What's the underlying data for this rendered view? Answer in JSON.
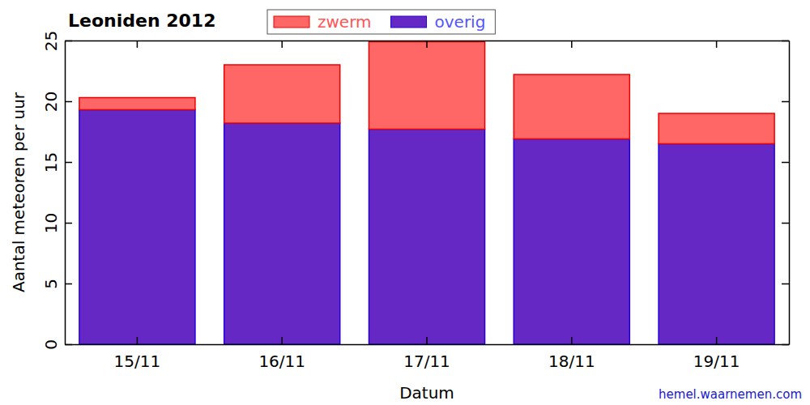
{
  "chart_data": {
    "type": "bar",
    "title": "Leoniden 2012",
    "x_label": "Datum",
    "y_label": "Aantal meteoren per uur",
    "annotations": [
      "hemel.waarnemen.com"
    ],
    "categories": [
      "15/11",
      "16/11",
      "17/11",
      "18/11",
      "19/11"
    ],
    "series": [
      {
        "name": "zwerm",
        "color": "#ff6666",
        "values": [
          1.0,
          4.8,
          7.2,
          5.3,
          2.5
        ]
      },
      {
        "name": "overig",
        "color": "#6528c4",
        "values": [
          19.3,
          18.2,
          17.7,
          16.9,
          16.5
        ]
      }
    ],
    "stacked": true,
    "ylim": [
      0,
      25
    ],
    "yticks": [
      0,
      5,
      10,
      15,
      20,
      25
    ],
    "grid": false,
    "legend": "upper left"
  }
}
